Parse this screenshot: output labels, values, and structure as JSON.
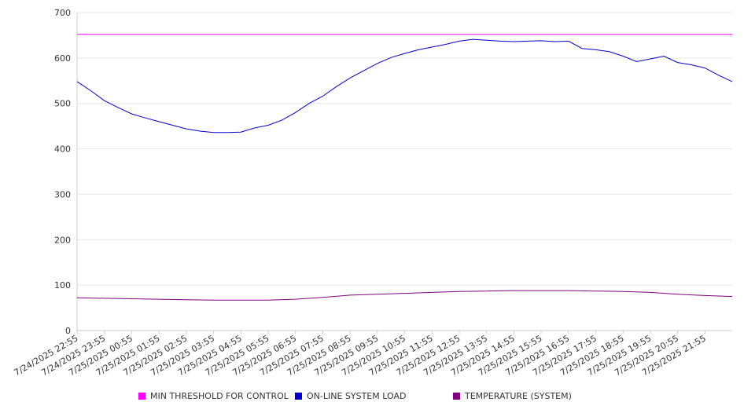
{
  "chart_data": {
    "type": "line",
    "x_start": "7/24/2025 22:55",
    "x_end": "7/25/2025 22:55",
    "x_ticks": [
      "7/24/2025 22:55",
      "7/24/2025 23:55",
      "7/25/2025 00:55",
      "7/25/2025 01:55",
      "7/25/2025 02:55",
      "7/25/2025 03:55",
      "7/25/2025 04:55",
      "7/25/2025 05:55",
      "7/25/2025 06:55",
      "7/25/2025 07:55",
      "7/25/2025 08:55",
      "7/25/2025 09:55",
      "7/25/2025 10:55",
      "7/25/2025 11:55",
      "7/25/2025 12:55",
      "7/25/2025 13:55",
      "7/25/2025 14:55",
      "7/25/2025 15:55",
      "7/25/2025 16:55",
      "7/25/2025 17:55",
      "7/25/2025 18:55",
      "7/25/2025 19:55",
      "7/25/2025 20:55",
      "7/25/2025 21:55"
    ],
    "y_ticks": [
      "0",
      "100",
      "200",
      "300",
      "400",
      "500",
      "600",
      "700"
    ],
    "ylim": [
      0,
      700
    ],
    "grid": true,
    "legend_position": "bottom",
    "series": [
      {
        "name": "MIN THRESHOLD FOR CONTROL",
        "color": "#ff00ff",
        "x": [
          "7/24/2025 22:55",
          "7/25/2025 22:55"
        ],
        "values": [
          652,
          652
        ]
      },
      {
        "name": "ON-LINE SYSTEM LOAD",
        "color": "#0000cc",
        "x": [
          "7/24/2025 22:55",
          "7/24/2025 23:25",
          "7/24/2025 23:55",
          "7/25/2025 00:25",
          "7/25/2025 00:55",
          "7/25/2025 01:25",
          "7/25/2025 01:55",
          "7/25/2025 02:25",
          "7/25/2025 02:55",
          "7/25/2025 03:25",
          "7/25/2025 03:55",
          "7/25/2025 04:25",
          "7/25/2025 04:55",
          "7/25/2025 05:25",
          "7/25/2025 05:55",
          "7/25/2025 06:25",
          "7/25/2025 06:55",
          "7/25/2025 07:25",
          "7/25/2025 07:55",
          "7/25/2025 08:25",
          "7/25/2025 08:55",
          "7/25/2025 09:25",
          "7/25/2025 09:55",
          "7/25/2025 10:25",
          "7/25/2025 10:55",
          "7/25/2025 11:25",
          "7/25/2025 11:55",
          "7/25/2025 12:25",
          "7/25/2025 12:55",
          "7/25/2025 13:25",
          "7/25/2025 13:55",
          "7/25/2025 14:25",
          "7/25/2025 14:55",
          "7/25/2025 15:25",
          "7/25/2025 15:55",
          "7/25/2025 16:25",
          "7/25/2025 16:55",
          "7/25/2025 17:25",
          "7/25/2025 17:55",
          "7/25/2025 18:25",
          "7/25/2025 18:55",
          "7/25/2025 19:25",
          "7/25/2025 19:55",
          "7/25/2025 20:25",
          "7/25/2025 20:55",
          "7/25/2025 21:25",
          "7/25/2025 21:55",
          "7/25/2025 22:25",
          "7/25/2025 22:55"
        ],
        "values": [
          548,
          528,
          506,
          491,
          477,
          468,
          460,
          452,
          444,
          439,
          436,
          436,
          437,
          446,
          452,
          463,
          480,
          500,
          516,
          537,
          556,
          572,
          588,
          601,
          610,
          618,
          624,
          630,
          637,
          641,
          639,
          637,
          636,
          637,
          638,
          636,
          637,
          621,
          618,
          614,
          604,
          592,
          598,
          604,
          590,
          585,
          578,
          562,
          548
        ]
      },
      {
        "name": "TEMPERATURE (SYSTEM)",
        "color": "#800080",
        "x": [
          "7/24/2025 22:55",
          "7/24/2025 23:55",
          "7/25/2025 00:55",
          "7/25/2025 01:55",
          "7/25/2025 02:55",
          "7/25/2025 03:55",
          "7/25/2025 04:55",
          "7/25/2025 05:55",
          "7/25/2025 06:55",
          "7/25/2025 07:55",
          "7/25/2025 08:55",
          "7/25/2025 09:55",
          "7/25/2025 10:55",
          "7/25/2025 11:55",
          "7/25/2025 12:55",
          "7/25/2025 13:55",
          "7/25/2025 14:55",
          "7/25/2025 15:55",
          "7/25/2025 16:55",
          "7/25/2025 17:55",
          "7/25/2025 18:55",
          "7/25/2025 19:55",
          "7/25/2025 20:55",
          "7/25/2025 21:55",
          "7/25/2025 22:55"
        ],
        "values": [
          72,
          71,
          70,
          69,
          68,
          67,
          67,
          67,
          69,
          73,
          78,
          80,
          82,
          84,
          86,
          87,
          88,
          88,
          88,
          87,
          86,
          84,
          80,
          77,
          75
        ]
      }
    ]
  }
}
